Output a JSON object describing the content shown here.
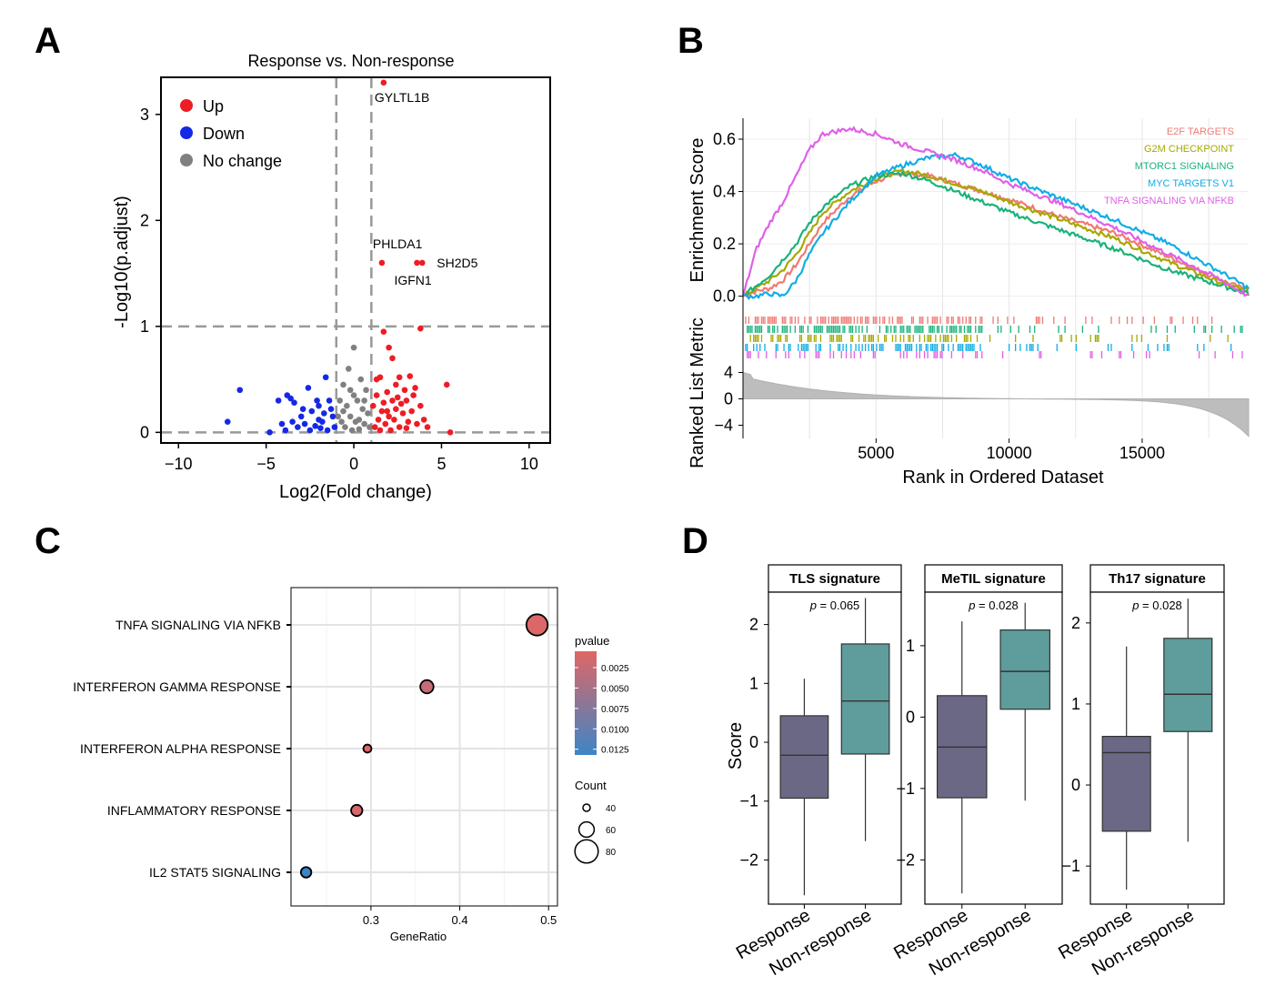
{
  "panels": {
    "a": "A",
    "b": "B",
    "c": "C",
    "d": "D"
  },
  "chart_data": [
    {
      "type": "scatter",
      "id": "volcano",
      "title": "Response vs. Non-response",
      "xlabel": "Log2(Fold change)",
      "ylabel": "-Log10(p.adjust)",
      "xlim": [
        -11,
        11.2
      ],
      "ylim": [
        -0.1,
        3.35
      ],
      "xticks": [
        -10,
        -5,
        0,
        5,
        10
      ],
      "xtick_labels": [
        "−10",
        "−5",
        "0",
        "5",
        "10"
      ],
      "yticks": [
        0,
        1,
        2,
        3
      ],
      "thresholds": {
        "x": [
          -1,
          1
        ],
        "y": [
          0,
          1
        ]
      },
      "legend": [
        {
          "label": "Up",
          "color": "#ee1c25"
        },
        {
          "label": "Down",
          "color": "#1528e6"
        },
        {
          "label": "No change",
          "color": "#808080"
        }
      ],
      "up_points": [
        [
          1.7,
          3.3
        ],
        [
          1.6,
          1.6
        ],
        [
          3.6,
          1.6
        ],
        [
          3.9,
          1.6
        ],
        [
          1.7,
          0.95
        ],
        [
          3.8,
          0.98
        ],
        [
          2.0,
          0.8
        ],
        [
          2.2,
          0.7
        ],
        [
          1.3,
          0.5
        ],
        [
          1.5,
          0.52
        ],
        [
          2.6,
          0.52
        ],
        [
          3.2,
          0.53
        ],
        [
          2.4,
          0.45
        ],
        [
          2.9,
          0.4
        ],
        [
          3.5,
          0.42
        ],
        [
          5.3,
          0.45
        ],
        [
          3.0,
          0.3
        ],
        [
          3.8,
          0.25
        ],
        [
          5.5,
          0.0
        ],
        [
          4.2,
          0.05
        ],
        [
          1.2,
          0.05
        ],
        [
          1.4,
          0.12
        ],
        [
          1.6,
          0.2
        ],
        [
          1.8,
          0.08
        ],
        [
          2.0,
          0.15
        ],
        [
          2.2,
          0.3
        ],
        [
          2.4,
          0.22
        ],
        [
          2.6,
          0.05
        ],
        [
          2.8,
          0.18
        ],
        [
          3.1,
          0.1
        ],
        [
          3.3,
          0.2
        ],
        [
          3.6,
          0.08
        ],
        [
          1.3,
          0.35
        ],
        [
          1.9,
          0.38
        ],
        [
          2.5,
          0.33
        ],
        [
          1.1,
          0.25
        ],
        [
          1.7,
          0.28
        ],
        [
          2.1,
          0.02
        ],
        [
          2.7,
          0.27
        ],
        [
          3.4,
          0.35
        ],
        [
          1.5,
          0.02
        ],
        [
          1.9,
          0.2
        ],
        [
          2.3,
          0.12
        ],
        [
          3.0,
          0.04
        ],
        [
          4.0,
          0.12
        ]
      ],
      "down_points": [
        [
          -6.5,
          0.4
        ],
        [
          -7.2,
          0.1
        ],
        [
          -4.3,
          0.3
        ],
        [
          -3.8,
          0.35
        ],
        [
          -3.6,
          0.32
        ],
        [
          -3.4,
          0.28
        ],
        [
          -2.6,
          0.42
        ],
        [
          -1.6,
          0.52
        ],
        [
          -2.0,
          0.25
        ],
        [
          -2.4,
          0.2
        ],
        [
          -3.0,
          0.15
        ],
        [
          -3.2,
          0.05
        ],
        [
          -4.8,
          0.0
        ],
        [
          -3.9,
          0.02
        ],
        [
          -1.4,
          0.3
        ],
        [
          -1.8,
          0.1
        ],
        [
          -2.2,
          0.06
        ],
        [
          -2.8,
          0.08
        ],
        [
          -1.2,
          0.15
        ],
        [
          -1.5,
          0.02
        ],
        [
          -2.0,
          0.12
        ],
        [
          -2.5,
          0.02
        ],
        [
          -3.5,
          0.1
        ],
        [
          -1.3,
          0.22
        ],
        [
          -1.7,
          0.18
        ],
        [
          -2.1,
          0.3
        ],
        [
          -2.9,
          0.22
        ],
        [
          -1.1,
          0.05
        ],
        [
          -4.1,
          0.08
        ],
        [
          -1.9,
          0.04
        ]
      ],
      "nochange_points": [
        [
          0.0,
          0.8
        ],
        [
          -0.3,
          0.6
        ],
        [
          0.4,
          0.5
        ],
        [
          -0.6,
          0.45
        ],
        [
          0.7,
          0.4
        ],
        [
          -0.8,
          0.3
        ],
        [
          0.2,
          0.3
        ],
        [
          -0.4,
          0.25
        ],
        [
          0.5,
          0.22
        ],
        [
          0.8,
          0.18
        ],
        [
          -0.2,
          0.15
        ],
        [
          0.1,
          0.1
        ],
        [
          -0.7,
          0.1
        ],
        [
          0.6,
          0.08
        ],
        [
          -0.5,
          0.05
        ],
        [
          0.3,
          0.03
        ],
        [
          -0.1,
          0.02
        ],
        [
          0.9,
          0.05
        ],
        [
          -0.9,
          0.15
        ],
        [
          0.0,
          0.35
        ],
        [
          -0.2,
          0.4
        ],
        [
          0.3,
          0.12
        ],
        [
          -0.6,
          0.2
        ],
        [
          0.6,
          0.3
        ]
      ],
      "labels": [
        {
          "text": "GYLTL1B",
          "x": 1.7,
          "y": 3.3
        },
        {
          "text": "PHLDA1",
          "x": 1.6,
          "y": 1.6
        },
        {
          "text": "SH2D5",
          "x": 3.9,
          "y": 1.6
        },
        {
          "text": "IGFN1",
          "x": 3.6,
          "y": 1.6
        }
      ]
    },
    {
      "type": "line",
      "id": "gsea",
      "xlabel": "Rank in Ordered Dataset",
      "ylabel": "Enrichment Score",
      "ylabel2": "Ranked List Metric",
      "xlim": [
        0,
        19000
      ],
      "ylim": [
        -0.05,
        0.68
      ],
      "xticks": [
        5000,
        10000,
        15000
      ],
      "yticks": [
        0.0,
        0.2,
        0.4,
        0.6
      ],
      "ytick_labels": [
        "0.0",
        "0.2",
        "0.4",
        "0.6"
      ],
      "metric_ylim": [
        -6,
        6
      ],
      "metric_yticks": [
        4,
        0,
        -4
      ],
      "series": [
        {
          "name": "E2F TARGETS",
          "color": "#f07a73",
          "x": [
            0,
            500,
            1000,
            1500,
            2000,
            2500,
            3000,
            4000,
            5000,
            6000,
            7000,
            8000,
            9000,
            10000,
            12000,
            14000,
            16000,
            18000,
            19000
          ],
          "values": [
            0.0,
            0.02,
            0.03,
            0.06,
            0.12,
            0.2,
            0.28,
            0.38,
            0.44,
            0.47,
            0.46,
            0.43,
            0.4,
            0.37,
            0.3,
            0.24,
            0.15,
            0.06,
            0.02
          ]
        },
        {
          "name": "G2M CHECKPOINT",
          "color": "#a7a800",
          "x": [
            0,
            500,
            1000,
            1500,
            2000,
            2500,
            3000,
            4000,
            5000,
            6000,
            7000,
            8000,
            9000,
            10000,
            12000,
            14000,
            16000,
            18000,
            19000
          ],
          "values": [
            0.0,
            0.03,
            0.06,
            0.1,
            0.16,
            0.24,
            0.32,
            0.4,
            0.45,
            0.48,
            0.46,
            0.43,
            0.4,
            0.36,
            0.29,
            0.22,
            0.13,
            0.05,
            0.02
          ]
        },
        {
          "name": "MTORC1 SIGNALING",
          "color": "#1bb27a",
          "x": [
            0,
            500,
            1000,
            1500,
            2000,
            2500,
            3000,
            4000,
            5000,
            6000,
            7000,
            8000,
            9000,
            10000,
            12000,
            14000,
            16000,
            18000,
            19000
          ],
          "values": [
            0.0,
            0.04,
            0.08,
            0.14,
            0.2,
            0.28,
            0.34,
            0.42,
            0.46,
            0.47,
            0.44,
            0.4,
            0.36,
            0.32,
            0.25,
            0.18,
            0.1,
            0.04,
            0.01
          ]
        },
        {
          "name": "MYC TARGETS V1",
          "color": "#11ade5",
          "x": [
            0,
            500,
            1000,
            1500,
            2000,
            2500,
            3000,
            4000,
            5000,
            6000,
            7000,
            8000,
            9000,
            10000,
            12000,
            14000,
            16000,
            18000,
            19000
          ],
          "values": [
            0.0,
            0.0,
            0.01,
            0.0,
            0.06,
            0.16,
            0.24,
            0.36,
            0.46,
            0.5,
            0.53,
            0.54,
            0.5,
            0.45,
            0.37,
            0.29,
            0.2,
            0.09,
            0.03
          ]
        },
        {
          "name": "TNFA SIGNALING VIA NFKB",
          "color": "#e060e8",
          "x": [
            0,
            500,
            1000,
            1500,
            2000,
            2500,
            3000,
            4000,
            5000,
            6000,
            7000,
            8000,
            9000,
            10000,
            12000,
            14000,
            16000,
            18000,
            19000
          ],
          "values": [
            0.0,
            0.18,
            0.28,
            0.36,
            0.46,
            0.56,
            0.62,
            0.64,
            0.62,
            0.58,
            0.55,
            0.52,
            0.48,
            0.43,
            0.35,
            0.26,
            0.16,
            0.06,
            0.0
          ]
        }
      ]
    },
    {
      "type": "scatter",
      "id": "dotplot",
      "xlabel": "GeneRatio",
      "xlim": [
        0.21,
        0.51
      ],
      "xticks": [
        0.3,
        0.4,
        0.5
      ],
      "xtick_labels": [
        "0.3",
        "0.4",
        "0.5"
      ],
      "categories": [
        "TNFA SIGNALING VIA NFKB",
        "INTERFERON GAMMA RESPONSE",
        "INTERFERON ALPHA RESPONSE",
        "INFLAMMATORY RESPONSE",
        "IL2 STAT5 SIGNALING"
      ],
      "gene_ratio": [
        0.487,
        0.363,
        0.296,
        0.284,
        0.227
      ],
      "count": [
        75,
        55,
        42,
        50,
        48
      ],
      "pvalue": [
        0.0008,
        0.0025,
        0.0005,
        0.0015,
        0.0132
      ],
      "color_legend": {
        "title": "pvalue",
        "ticks": [
          0.0025,
          0.005,
          0.0075,
          0.01,
          0.0125
        ],
        "tick_labels": [
          "0.0025",
          "0.0050",
          "0.0075",
          "0.0100",
          "0.0125"
        ],
        "low": "#e06666",
        "high": "#3d85c6"
      },
      "size_legend": {
        "title": "Count",
        "values": [
          40,
          60,
          80
        ],
        "labels": [
          "40",
          "60",
          "80"
        ]
      }
    },
    {
      "type": "box",
      "id": "boxplots",
      "ylabel": "Score",
      "categories": [
        "Response",
        "Non-response"
      ],
      "colors": [
        "#6b6885",
        "#5f9c9c"
      ],
      "facets": [
        {
          "title": "TLS signature",
          "p_label": "p",
          "p_value": " = 0.065",
          "ylim": [
            -2.75,
            2.55
          ],
          "yticks": [
            2,
            1,
            0,
            -1,
            -2
          ],
          "ytick_labels": [
            "2",
            "1",
            "0",
            "−1",
            "−2"
          ],
          "boxes": [
            {
              "min": -2.6,
              "q1": -0.95,
              "median": -0.22,
              "q3": 0.45,
              "max": 1.08
            },
            {
              "min": -1.68,
              "q1": -0.2,
              "median": 0.7,
              "q3": 1.67,
              "max": 2.45
            }
          ]
        },
        {
          "title": "MeTIL signature",
          "p_label": "p",
          "p_value": " = 0.028",
          "ylim": [
            -2.62,
            1.75
          ],
          "yticks": [
            1,
            0,
            -1,
            -2
          ],
          "ytick_labels": [
            "1",
            "0",
            "−1",
            "−2"
          ],
          "boxes": [
            {
              "min": -2.47,
              "q1": -1.13,
              "median": -0.42,
              "q3": 0.3,
              "max": 1.34
            },
            {
              "min": -1.17,
              "q1": 0.11,
              "median": 0.64,
              "q3": 1.22,
              "max": 1.6
            }
          ]
        },
        {
          "title": "Th17 signature",
          "p_label": "p",
          "p_value": " = 0.028",
          "ylim": [
            -1.47,
            2.38
          ],
          "yticks": [
            2,
            1,
            0,
            -1
          ],
          "ytick_labels": [
            "2",
            "1",
            "0",
            "−1"
          ],
          "boxes": [
            {
              "min": -1.29,
              "q1": -0.57,
              "median": 0.4,
              "q3": 0.6,
              "max": 1.71
            },
            {
              "min": -0.7,
              "q1": 0.66,
              "median": 1.12,
              "q3": 1.81,
              "max": 2.3
            }
          ]
        }
      ]
    }
  ]
}
